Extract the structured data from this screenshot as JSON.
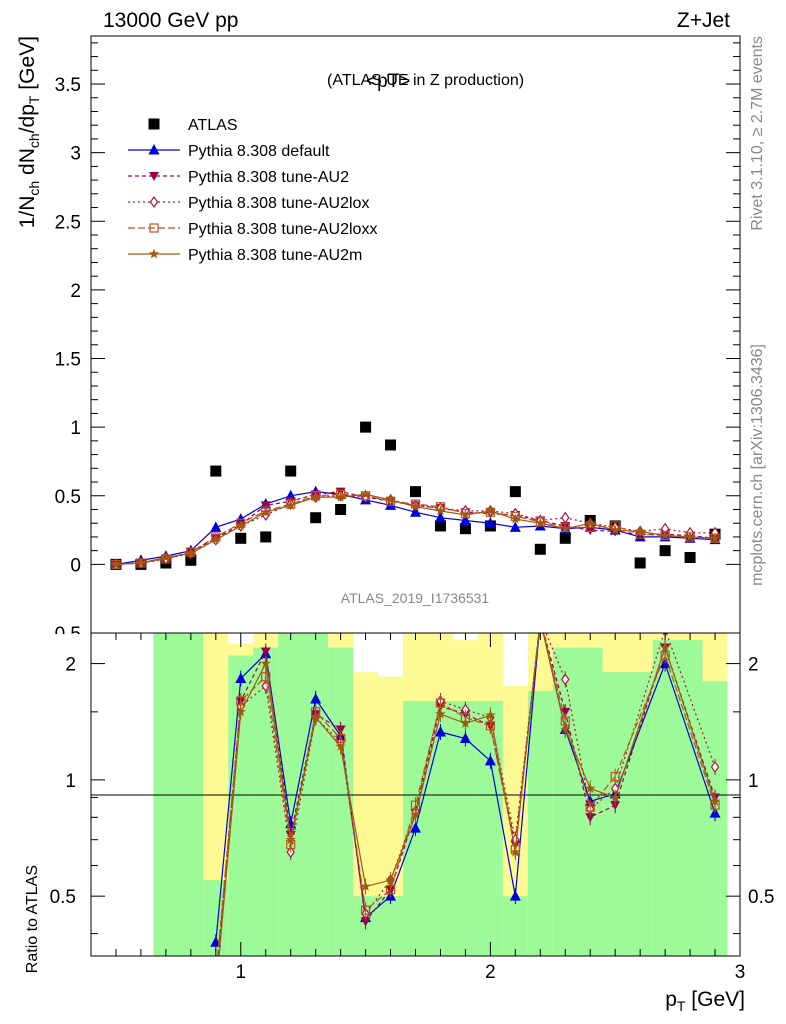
{
  "header": {
    "left": "13000 GeV pp",
    "right": "Z+Jet"
  },
  "side_labels": {
    "rivet": "Rivet 3.1.10, ≥ 2.7M events",
    "mcplots": "mcplots.cern.ch [arXiv:1306.3436]"
  },
  "main_title": "<pT>",
  "main_subtitle": "(ATLAS UE in Z production)",
  "analysis_id": "ATLAS_2019_I1736531",
  "colors": {
    "data": "#000000",
    "default": "#0000dd",
    "AU2": "#99004c",
    "AU2lox": "#b0143c",
    "AU2loxx": "#c0501c",
    "AU2m": "#a05a10",
    "band_green": "#9cfb98",
    "band_yellow": "#fdfa94"
  },
  "chart_data": [
    {
      "type": "line",
      "ylabel": "1/N_ch dN_ch/dp_T [GeV]",
      "xlim": [
        0.4,
        3.0
      ],
      "ylim": [
        -0.5,
        3.85
      ],
      "yticks": [
        "0",
        "0.5",
        "1",
        "1.5",
        "2",
        "2.5",
        "3",
        "3.5"
      ],
      "x": [
        0.5,
        0.6,
        0.7,
        0.8,
        0.9,
        1.0,
        1.1,
        1.2,
        1.3,
        1.4,
        1.5,
        1.6,
        1.7,
        1.8,
        1.9,
        2.0,
        2.1,
        2.2,
        2.3,
        2.4,
        2.5,
        2.6,
        2.7,
        2.8,
        2.9
      ],
      "legend": [
        "ATLAS",
        "Pythia 8.308 default",
        "Pythia 8.308 tune-AU2",
        "Pythia 8.308 tune-AU2lox",
        "Pythia 8.308 tune-AU2loxx",
        "Pythia 8.308 tune-AU2m"
      ],
      "series": [
        {
          "name": "ATLAS",
          "style": "data",
          "values": [
            0.0,
            0.0,
            0.01,
            0.03,
            0.68,
            0.19,
            0.2,
            0.68,
            0.34,
            0.4,
            1.0,
            0.87,
            0.53,
            0.28,
            0.26,
            0.28,
            0.53,
            0.11,
            0.19,
            0.32,
            0.28,
            0.01,
            0.1,
            0.05,
            0.22
          ]
        },
        {
          "name": "Pythia 8.308 default",
          "style": "default",
          "values": [
            0.0,
            0.03,
            0.06,
            0.1,
            0.27,
            0.33,
            0.44,
            0.5,
            0.53,
            0.51,
            0.47,
            0.43,
            0.38,
            0.34,
            0.32,
            0.3,
            0.27,
            0.28,
            0.26,
            0.27,
            0.25,
            0.2,
            0.2,
            0.19,
            0.18
          ]
        },
        {
          "name": "Pythia 8.308 tune-AU2",
          "style": "AU2",
          "values": [
            0.0,
            0.01,
            0.04,
            0.09,
            0.19,
            0.29,
            0.43,
            0.46,
            0.51,
            0.53,
            0.49,
            0.46,
            0.43,
            0.41,
            0.38,
            0.37,
            0.36,
            0.32,
            0.28,
            0.25,
            0.24,
            0.22,
            0.22,
            0.21,
            0.19
          ]
        },
        {
          "name": "Pythia 8.308 tune-AU2lox",
          "style": "AU2lox",
          "values": [
            0.0,
            0.01,
            0.04,
            0.08,
            0.18,
            0.28,
            0.36,
            0.44,
            0.49,
            0.5,
            0.49,
            0.47,
            0.43,
            0.41,
            0.39,
            0.39,
            0.37,
            0.32,
            0.34,
            0.3,
            0.27,
            0.24,
            0.26,
            0.23,
            0.23
          ]
        },
        {
          "name": "Pythia 8.308 tune-AU2loxx",
          "style": "AU2loxx",
          "values": [
            0.0,
            0.01,
            0.04,
            0.09,
            0.2,
            0.3,
            0.39,
            0.44,
            0.5,
            0.51,
            0.5,
            0.46,
            0.44,
            0.42,
            0.37,
            0.38,
            0.35,
            0.31,
            0.27,
            0.27,
            0.28,
            0.22,
            0.21,
            0.2,
            0.19
          ]
        },
        {
          "name": "Pythia 8.308 tune-AU2m",
          "style": "AU2m",
          "values": [
            0.0,
            0.01,
            0.05,
            0.08,
            0.18,
            0.28,
            0.38,
            0.43,
            0.49,
            0.49,
            0.51,
            0.47,
            0.42,
            0.39,
            0.36,
            0.39,
            0.33,
            0.3,
            0.26,
            0.3,
            0.25,
            0.24,
            0.21,
            0.2,
            0.19
          ]
        }
      ]
    },
    {
      "type": "line",
      "ylabel": "Ratio to ATLAS",
      "xlabel": "p_T [GeV]",
      "xlim": [
        0.4,
        3.0
      ],
      "ylim": [
        0.35,
        2.4
      ],
      "yscale": "log",
      "xticks": [
        "1",
        "2",
        "3"
      ],
      "yticks": [
        "0.5",
        "1",
        "2"
      ],
      "x": [
        0.9,
        1.0,
        1.1,
        1.2,
        1.3,
        1.4,
        1.5,
        1.6,
        1.7,
        1.8,
        1.9,
        2.0,
        2.1,
        2.2,
        2.3,
        2.4,
        2.5,
        2.7,
        2.9
      ],
      "series": [
        {
          "name": "Pythia 8.308 default",
          "style": "default",
          "values": [
            0.38,
            1.83,
            2.12,
            0.77,
            1.62,
            1.3,
            0.44,
            0.5,
            0.75,
            1.33,
            1.28,
            1.12,
            0.5,
            2.6,
            1.35,
            0.88,
            0.92,
            2.0,
            0.82
          ]
        },
        {
          "name": "Pythia 8.308 tune-AU2",
          "style": "AU2",
          "values": [
            0.3,
            1.6,
            2.15,
            0.72,
            1.48,
            1.35,
            0.43,
            0.52,
            0.82,
            1.55,
            1.48,
            1.38,
            0.68,
            2.6,
            1.5,
            0.8,
            0.86,
            2.2,
            0.9
          ]
        },
        {
          "name": "Pythia 8.308 tune-AU2lox",
          "style": "AU2lox",
          "values": [
            0.29,
            1.55,
            1.75,
            0.65,
            1.45,
            1.25,
            0.45,
            0.55,
            0.83,
            1.6,
            1.52,
            1.45,
            0.7,
            2.6,
            1.82,
            0.84,
            0.95,
            2.45,
            1.08
          ]
        },
        {
          "name": "Pythia 8.308 tune-AU2loxx",
          "style": "AU2loxx",
          "values": [
            0.31,
            1.6,
            1.85,
            0.68,
            1.5,
            1.28,
            0.46,
            0.52,
            0.86,
            1.58,
            1.45,
            1.38,
            0.66,
            2.6,
            1.42,
            0.85,
            1.02,
            2.1,
            0.86
          ]
        },
        {
          "name": "Pythia 8.308 tune-AU2m",
          "style": "AU2m",
          "values": [
            0.28,
            1.5,
            2.0,
            0.7,
            1.45,
            1.22,
            0.53,
            0.55,
            0.81,
            1.48,
            1.4,
            1.47,
            0.65,
            2.6,
            1.35,
            0.95,
            0.9,
            2.2,
            0.88
          ]
        }
      ]
    }
  ]
}
